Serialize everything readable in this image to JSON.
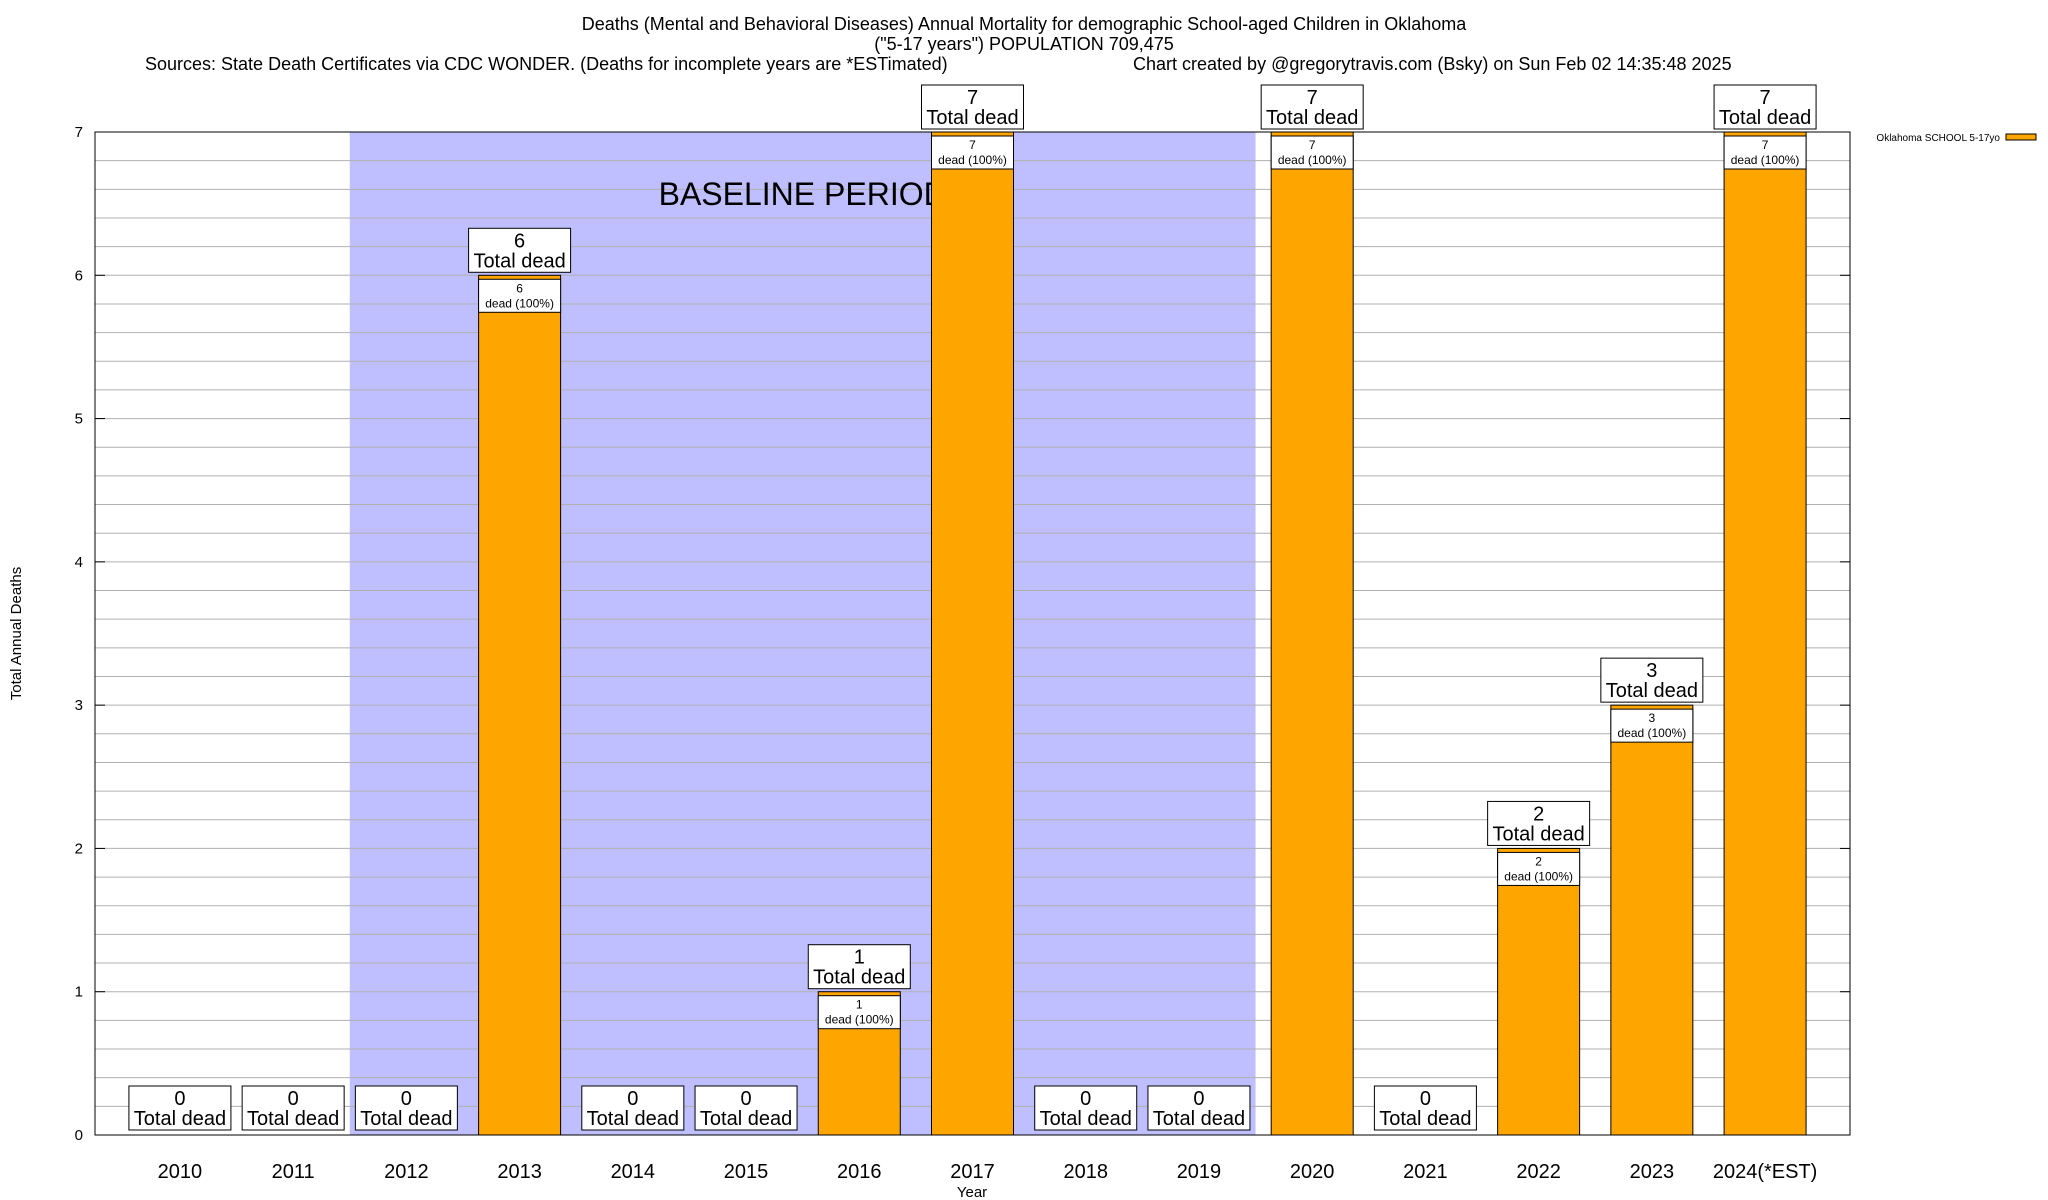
{
  "title": {
    "line1": "Deaths (Mental and Behavioral Diseases) Annual Mortality for demographic School-aged Children in Oklahoma",
    "line2": "(\"5-17 years\") POPULATION 709,475",
    "sources": "Sources: State Death Certificates via CDC WONDER. (Deaths for incomplete years are *ESTimated)",
    "credit": "Chart created by @gregorytravis.com (Bsky) on Sun Feb 02 14:35:48 2025"
  },
  "chart_data": {
    "type": "bar",
    "categories": [
      "2010",
      "2011",
      "2012",
      "2013",
      "2014",
      "2015",
      "2016",
      "2017",
      "2018",
      "2019",
      "2020",
      "2021",
      "2022",
      "2023",
      "2024(*EST)"
    ],
    "series": [
      {
        "name": "Oklahoma SCHOOL 5-17yo",
        "values": [
          0,
          0,
          0,
          6,
          0,
          0,
          1,
          7,
          0,
          0,
          7,
          0,
          2,
          3,
          7
        ],
        "color": "#FFA500"
      }
    ],
    "xlabel": "Year",
    "ylabel": "Total Annual Deaths",
    "ylim": [
      0,
      7
    ],
    "yticks": [
      0,
      1,
      2,
      3,
      4,
      5,
      6,
      7
    ],
    "grid": true,
    "legend": "top-right",
    "total_label": "Total dead",
    "segment_label": "dead (100%)",
    "baseline_period": {
      "label": "BASELINE PERIOD",
      "start": "2012",
      "end": "2019",
      "color": "#BFBFFF"
    }
  }
}
